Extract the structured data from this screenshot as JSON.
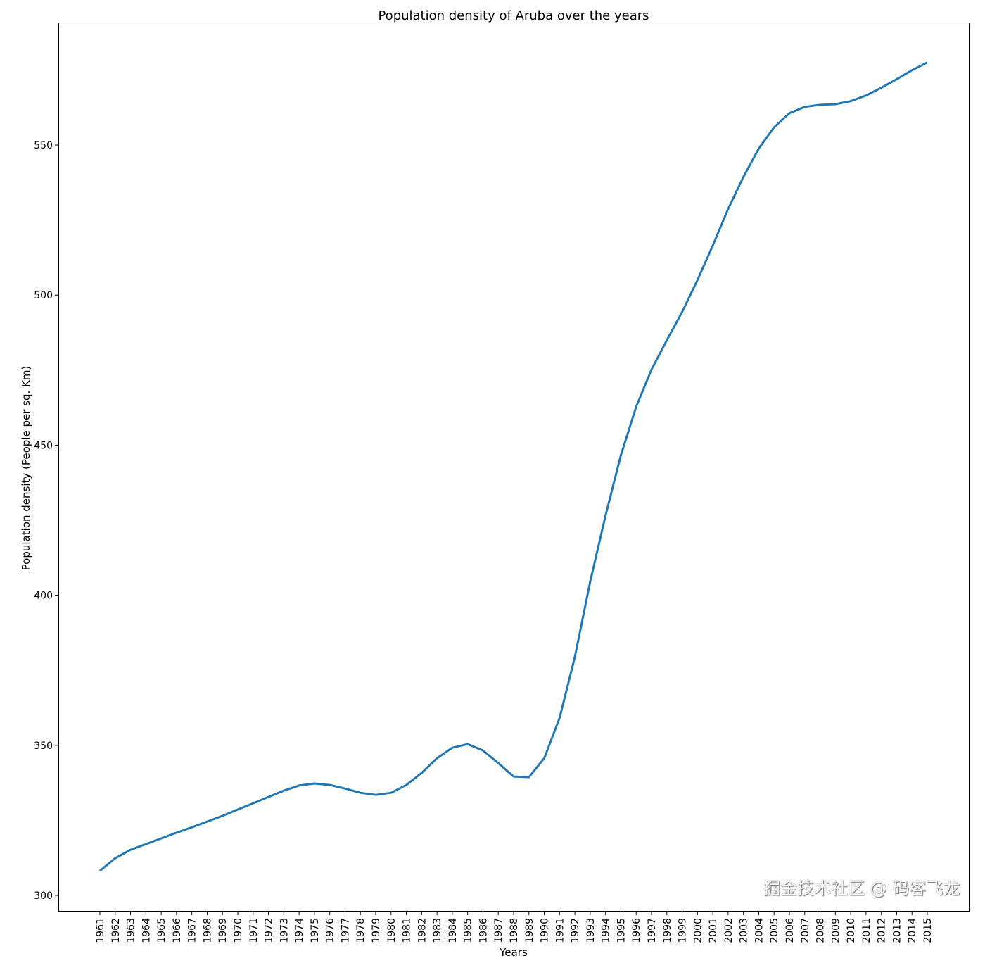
{
  "chart_data": {
    "type": "line",
    "title": "Population density of Aruba over the years",
    "xlabel": "Years",
    "ylabel": "Population density (People per sq. Km)",
    "ylim": [
      294,
      590
    ],
    "yticks": [
      300,
      350,
      400,
      450,
      500,
      550
    ],
    "grid": false,
    "line_color": "#1f77b4",
    "x": [
      1961,
      1962,
      1963,
      1964,
      1965,
      1966,
      1967,
      1968,
      1969,
      1970,
      1971,
      1972,
      1973,
      1974,
      1975,
      1976,
      1977,
      1978,
      1979,
      1980,
      1981,
      1982,
      1983,
      1984,
      1985,
      1986,
      1987,
      1988,
      1989,
      1990,
      1991,
      1992,
      1993,
      1994,
      1995,
      1996,
      1997,
      1998,
      1999,
      2000,
      2001,
      2002,
      2003,
      2004,
      2005,
      2006,
      2007,
      2008,
      2009,
      2010,
      2011,
      2012,
      2013,
      2014,
      2015
    ],
    "series": [
      {
        "values": [
          308.2,
          312.4,
          315.2,
          317.1,
          319.0,
          320.9,
          322.7,
          324.6,
          326.5,
          328.6,
          330.7,
          332.8,
          334.9,
          336.6,
          337.3,
          336.8,
          335.6,
          334.2,
          333.5,
          334.2,
          336.8,
          340.8,
          345.7,
          349.2,
          350.4,
          348.3,
          344.1,
          339.6,
          339.4,
          345.7,
          359.1,
          379.5,
          404.6,
          426.6,
          446.6,
          462.8,
          475.2,
          485.0,
          494.4,
          505.0,
          516.5,
          528.7,
          539.4,
          548.8,
          555.9,
          560.6,
          562.7,
          563.4,
          563.6,
          564.6,
          566.5,
          569.1,
          571.9,
          574.9,
          577.5
        ]
      }
    ]
  },
  "watermark": "掘金技术社区 @ 码客飞龙"
}
